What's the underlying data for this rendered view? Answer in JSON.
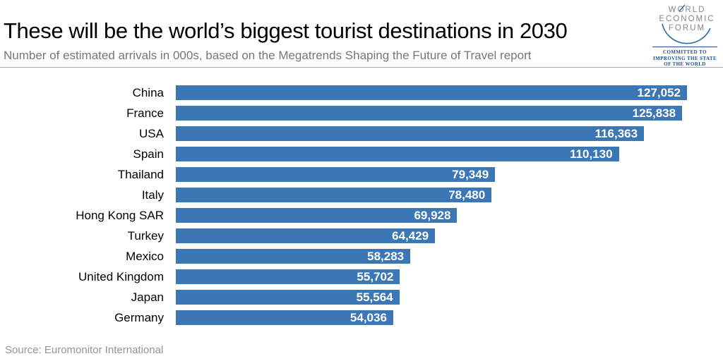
{
  "header": {
    "title": "These will be the world’s biggest tourist destinations in 2030",
    "subtitle": "Number of estimated arrivals in 000s, based on the Megatrends Shaping the Future of Travel report"
  },
  "logo": {
    "line1": "WORLD",
    "line2": "ECONOMIC",
    "line3": "FORUM",
    "tagline": "COMMITTED TO IMPROVING THE STATE OF THE WORLD",
    "text_color": "#85878a",
    "accent_color": "#2e6ca6",
    "tagline_color": "#1d4e89"
  },
  "footer": {
    "source": "Source: Euromonitor International"
  },
  "chart_data": {
    "type": "bar",
    "orientation": "horizontal",
    "title": "These will be the world’s biggest tourist destinations in 2030",
    "subtitle": "Number of estimated arrivals in 000s, based on the Megatrends Shaping the Future of Travel report",
    "categories": [
      "China",
      "France",
      "USA",
      "Spain",
      "Thailand",
      "Italy",
      "Hong Kong SAR",
      "Turkey",
      "Mexico",
      "United Kingdom",
      "Japan",
      "Germany"
    ],
    "values": [
      127052,
      125838,
      116363,
      110130,
      79349,
      78480,
      69928,
      64429,
      58283,
      55702,
      55564,
      54036
    ],
    "value_labels": [
      "127,052",
      "125,838",
      "116,363",
      "110,130",
      "79,349",
      "78,480",
      "69,928",
      "64,429",
      "58,283",
      "55,702",
      "55,564",
      "54,036"
    ],
    "xlabel": "",
    "ylabel": "",
    "xlim": [
      0,
      127052
    ],
    "grid": false,
    "legend": false,
    "bar_color": "#3B76B5",
    "value_label_color": "#ffffff",
    "source": "Source: Euromonitor International"
  }
}
